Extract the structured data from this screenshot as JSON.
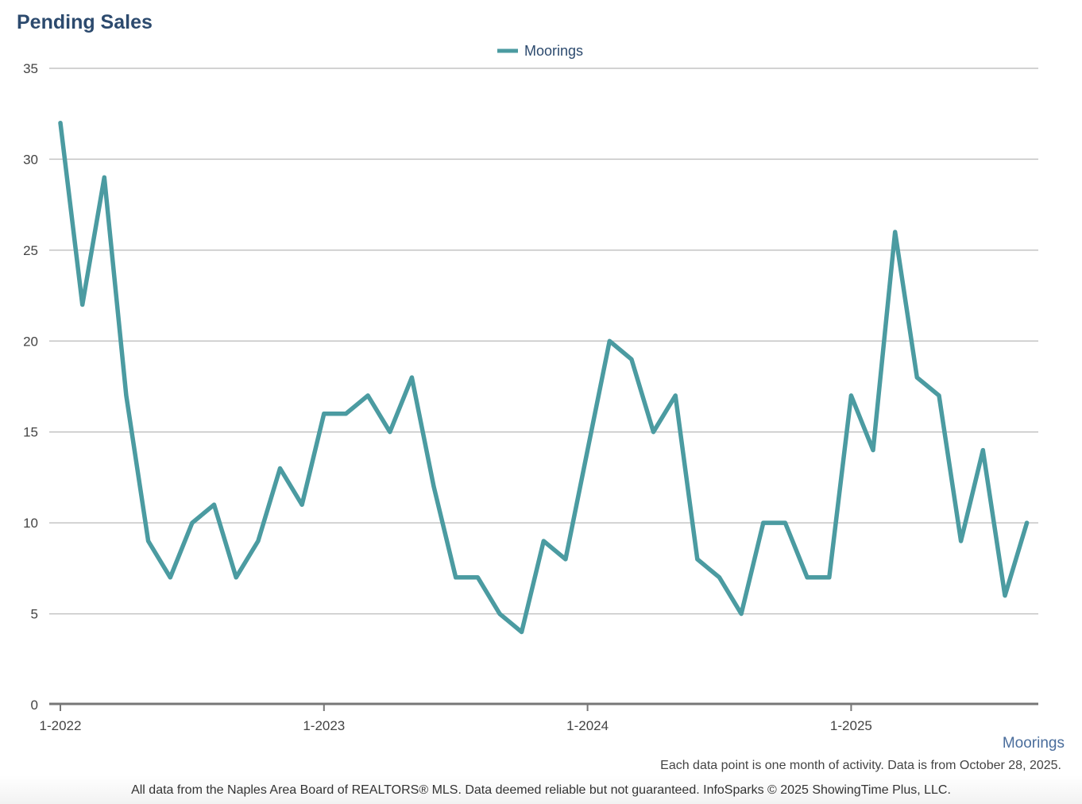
{
  "header": {
    "title": "Pending Sales"
  },
  "legend": {
    "label": "Moorings"
  },
  "source_label": "Moorings",
  "note": "Each data point is one month of activity. Data is from October 28, 2025.",
  "footer": "All data from the Naples Area Board of REALTORS® MLS. Data deemed reliable but not guaranteed. InfoSparks © 2025 ShowingTime Plus, LLC.",
  "colors": {
    "series": "#4b9ba1",
    "title": "#2c4a6e",
    "grid": "#c4c4c4",
    "axis": "#777777"
  },
  "chart_data": {
    "type": "line",
    "title": "Pending Sales",
    "xlabel": "",
    "ylabel": "",
    "ylim": [
      0,
      35
    ],
    "yticks": [
      0,
      5,
      10,
      15,
      20,
      25,
      30,
      35
    ],
    "xticks": [
      "1-2022",
      "1-2023",
      "1-2024",
      "1-2025"
    ],
    "grid": true,
    "legend_position": "top-center",
    "series": [
      {
        "name": "Moorings",
        "x": [
          "1-2022",
          "2-2022",
          "3-2022",
          "4-2022",
          "5-2022",
          "6-2022",
          "7-2022",
          "8-2022",
          "9-2022",
          "10-2022",
          "11-2022",
          "12-2022",
          "1-2023",
          "2-2023",
          "3-2023",
          "4-2023",
          "5-2023",
          "6-2023",
          "7-2023",
          "8-2023",
          "9-2023",
          "10-2023",
          "11-2023",
          "12-2023",
          "1-2024",
          "2-2024",
          "3-2024",
          "4-2024",
          "5-2024",
          "6-2024",
          "7-2024",
          "8-2024",
          "9-2024",
          "10-2024",
          "11-2024",
          "12-2024",
          "1-2025",
          "2-2025",
          "3-2025",
          "4-2025",
          "5-2025",
          "6-2025",
          "7-2025",
          "8-2025",
          "9-2025"
        ],
        "values": [
          32,
          22,
          29,
          17,
          9,
          7,
          10,
          11,
          7,
          9,
          13,
          11,
          16,
          16,
          17,
          15,
          18,
          12,
          7,
          7,
          5,
          4,
          9,
          8,
          14,
          20,
          19,
          15,
          17,
          8,
          7,
          5,
          10,
          10,
          7,
          7,
          17,
          14,
          26,
          18,
          17,
          9,
          14,
          6,
          10
        ]
      }
    ]
  }
}
